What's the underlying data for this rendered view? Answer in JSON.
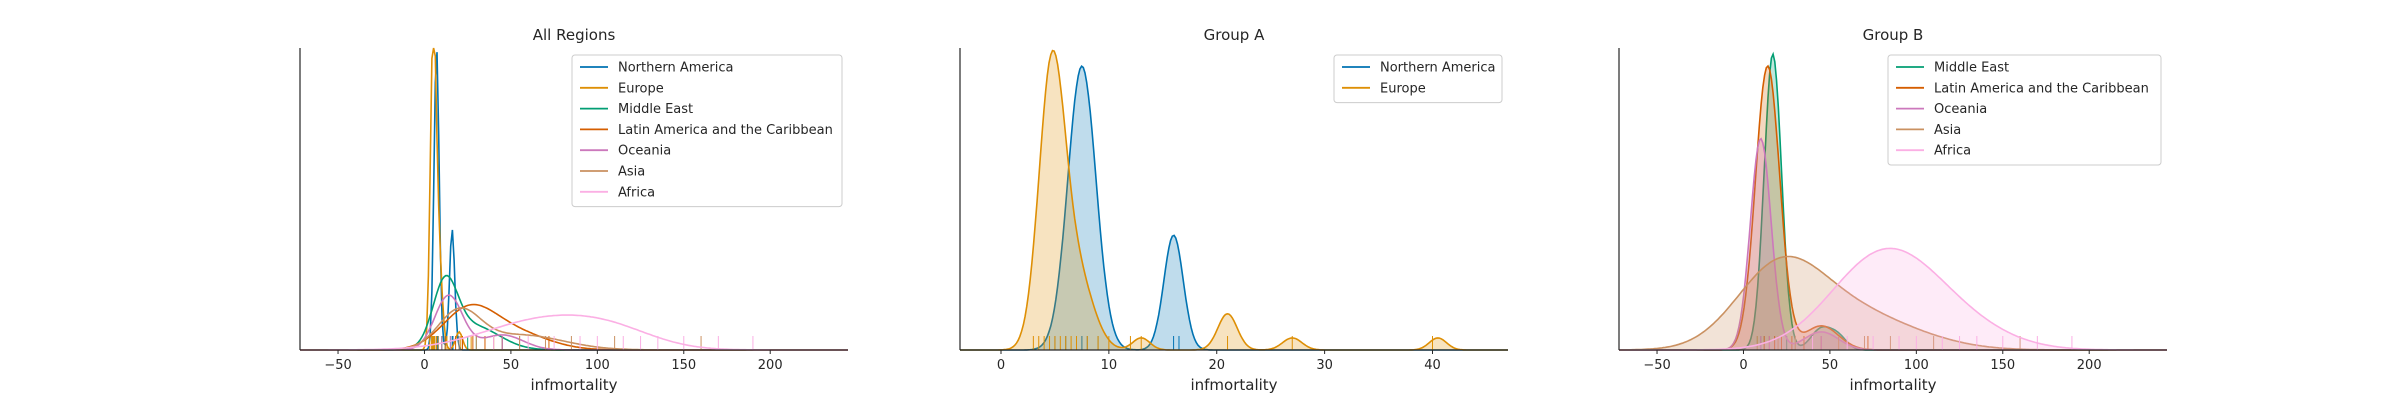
{
  "figure": {
    "type": "kde_with_rug"
  },
  "colors": {
    "Northern America": "#0173b2",
    "Europe": "#de8f05",
    "Middle East": "#029e73",
    "Latin America and the Caribbean": "#d55e00",
    "Oceania": "#cc78bc",
    "Asia": "#ca9161",
    "Africa": "#fbafe4"
  },
  "chart_data": [
    {
      "type": "area",
      "title": "All Regions",
      "xlabel": "infmortality",
      "ylabel": "",
      "xlim": [
        -72,
        245
      ],
      "xticks": [
        -50,
        0,
        50,
        100,
        150,
        200
      ],
      "legend": {
        "placement": "top-right",
        "entries": [
          "Northern America",
          "Europe",
          "Middle East",
          "Latin America and the Caribbean",
          "Oceania",
          "Asia",
          "Africa"
        ]
      },
      "filled": false,
      "series": [
        {
          "name": "Northern America",
          "peaks": [
            [
              7,
              1.0,
              1.5
            ],
            [
              16,
              0.4,
              1.5
            ]
          ],
          "rug": [
            5,
            6,
            7,
            7.5,
            8,
            16,
            16.5
          ]
        },
        {
          "name": "Europe",
          "peaks": [
            [
              5,
              1.0,
              1.6
            ],
            [
              8,
              0.35,
              2.0
            ],
            [
              20,
              0.06,
              2.0
            ]
          ],
          "rug": [
            3,
            4,
            4.5,
            5,
            5.5,
            6,
            7,
            8,
            10,
            13,
            21,
            27,
            40
          ]
        },
        {
          "name": "Middle East",
          "peaks": [
            [
              12,
              0.2,
              7
            ],
            [
              28,
              0.08,
              15
            ]
          ],
          "rug": [
            8,
            10,
            12,
            15,
            20,
            25,
            30,
            45,
            55
          ]
        },
        {
          "name": "Latin America and the Caribbean",
          "peaks": [
            [
              25,
              0.12,
              15
            ],
            [
              50,
              0.06,
              20
            ]
          ],
          "rug": [
            12,
            18,
            22,
            28,
            35,
            45,
            55,
            72
          ]
        },
        {
          "name": "Oceania",
          "peaks": [
            [
              14,
              0.18,
              8
            ],
            [
              45,
              0.05,
              12
            ]
          ],
          "rug": [
            10,
            15,
            20,
            45,
            55
          ]
        },
        {
          "name": "Asia",
          "peaks": [
            [
              20,
              0.12,
              12
            ],
            [
              55,
              0.05,
              25
            ]
          ],
          "rug": [
            8,
            20,
            30,
            40,
            55,
            70,
            85,
            110,
            160
          ]
        },
        {
          "name": "Africa",
          "peaks": [
            [
              70,
              0.1,
              35
            ],
            [
              110,
              0.04,
              25
            ]
          ],
          "rug": [
            40,
            60,
            75,
            90,
            100,
            115,
            125,
            135,
            150,
            170,
            190
          ]
        }
      ]
    },
    {
      "type": "area",
      "title": "Group A",
      "xlabel": "infmortality",
      "ylabel": "",
      "xlim": [
        -3.8,
        47
      ],
      "xticks": [
        0,
        10,
        20,
        30,
        40
      ],
      "legend": {
        "placement": "top-right",
        "entries": [
          "Northern America",
          "Europe"
        ]
      },
      "filled": true,
      "series": [
        {
          "name": "Northern America",
          "peaks": [
            [
              7.5,
              0.94,
              1.3
            ],
            [
              16,
              0.38,
              0.9
            ]
          ],
          "rug": [
            5,
            6,
            7,
            7.5,
            8,
            9,
            16,
            16.5
          ]
        },
        {
          "name": "Europe",
          "peaks": [
            [
              4.7,
              0.91,
              1.2
            ],
            [
              7,
              0.25,
              1.5
            ],
            [
              13,
              0.04,
              0.8
            ],
            [
              21,
              0.12,
              0.9
            ],
            [
              27,
              0.04,
              0.9
            ],
            [
              40.5,
              0.04,
              0.8
            ]
          ],
          "rug": [
            3,
            3.5,
            4,
            4.5,
            5,
            5.5,
            6,
            6.5,
            7,
            8,
            9,
            10,
            12,
            13,
            21,
            27,
            40
          ]
        }
      ]
    },
    {
      "type": "area",
      "title": "Group B",
      "xlabel": "infmortality",
      "ylabel": "",
      "xlim": [
        -72,
        245
      ],
      "xticks": [
        -50,
        0,
        50,
        100,
        150,
        200
      ],
      "legend": {
        "placement": "top-right",
        "entries": [
          "Middle East",
          "Latin America and the Caribbean",
          "Oceania",
          "Asia",
          "Africa"
        ]
      },
      "filled": true,
      "series": [
        {
          "name": "Middle East",
          "peaks": [
            [
              17,
              0.98,
              5
            ],
            [
              45,
              0.07,
              6
            ],
            [
              55,
              0.04,
              5
            ]
          ],
          "rug": [
            8,
            10,
            12,
            15,
            18,
            20,
            25,
            30,
            45,
            55
          ]
        },
        {
          "name": "Latin America and the Caribbean",
          "peaks": [
            [
              14,
              0.94,
              7
            ],
            [
              45,
              0.08,
              10
            ]
          ],
          "rug": [
            12,
            15,
            18,
            22,
            28,
            35,
            45,
            55,
            72
          ]
        },
        {
          "name": "Oceania",
          "peaks": [
            [
              10,
              0.7,
              6
            ],
            [
              45,
              0.06,
              10
            ]
          ],
          "rug": [
            10,
            15,
            20,
            45,
            55
          ]
        },
        {
          "name": "Asia",
          "peaks": [
            [
              20,
              0.25,
              25
            ],
            [
              55,
              0.1,
              30
            ],
            [
              90,
              0.04,
              30
            ]
          ],
          "rug": [
            8,
            20,
            30,
            40,
            55,
            70,
            85,
            110,
            160
          ]
        },
        {
          "name": "Africa",
          "peaks": [
            [
              80,
              0.3,
              30
            ],
            [
              120,
              0.08,
              30
            ]
          ],
          "rug": [
            40,
            60,
            75,
            90,
            100,
            115,
            125,
            135,
            150,
            170,
            190
          ]
        }
      ]
    }
  ]
}
